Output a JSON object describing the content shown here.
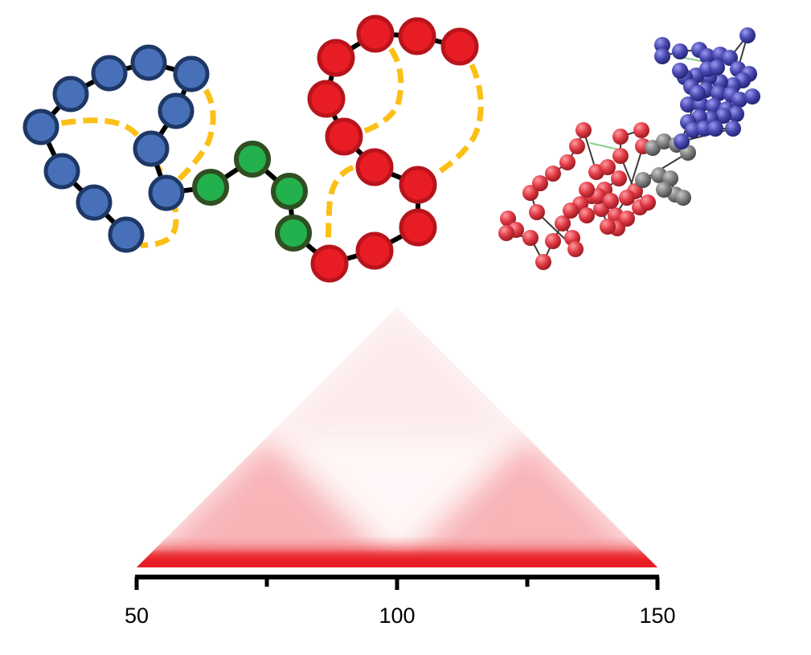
{
  "colors": {
    "domain_a_fill": "#4870b8",
    "domain_a_edge": "#1e3866",
    "linker_fill": "#22b14c",
    "linker_edge": "#2f4f22",
    "domain_b_fill": "#e81c24",
    "domain_b_edge": "#b8141c",
    "loop_contact": "#fbbf16",
    "backbone": "#000000",
    "render_a": "#4a4aa8",
    "render_linker": "#808080",
    "render_b": "#e8404a",
    "heatmap": "#e81c24"
  },
  "axis": {
    "min": 50,
    "max": 150,
    "major_ticks": [
      50,
      100,
      150
    ],
    "minor_ticks": [
      75,
      125
    ],
    "tick_labels": [
      "50",
      "100",
      "150"
    ]
  }
}
